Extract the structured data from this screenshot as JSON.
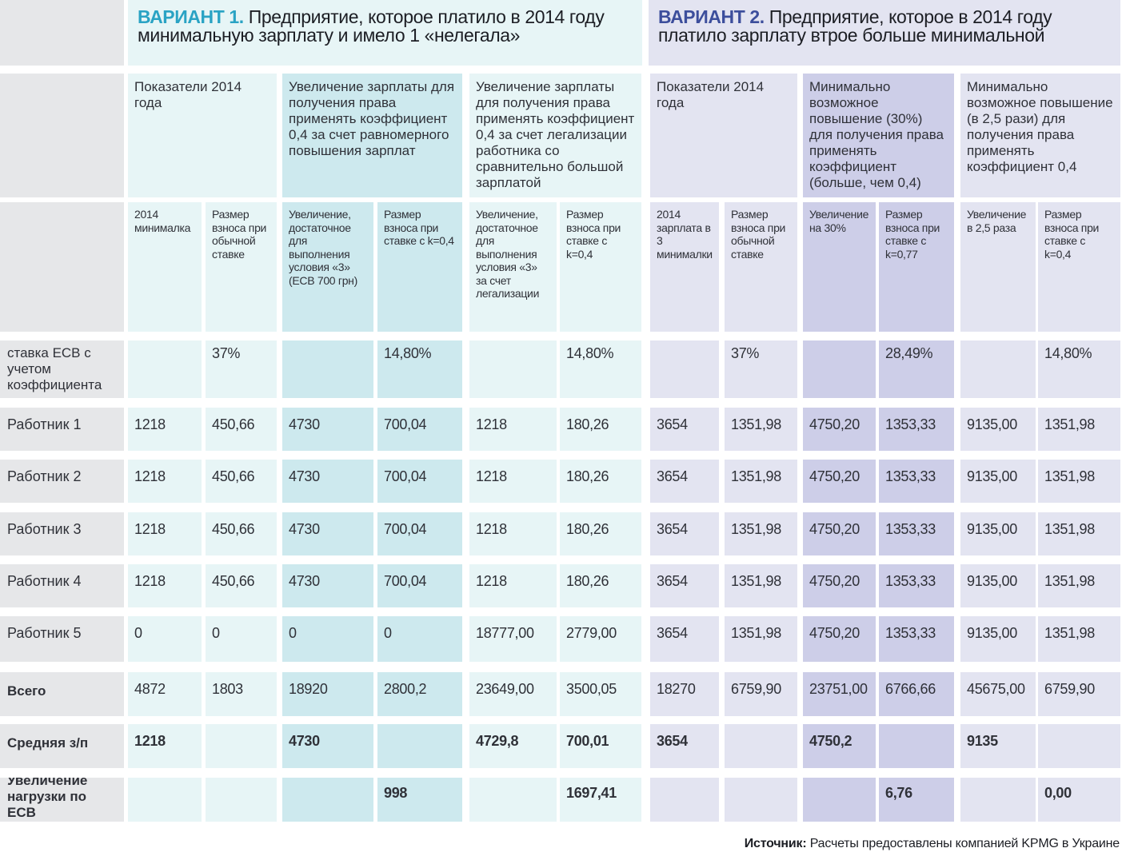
{
  "title1": {
    "lead": "ВАРИАНТ 1.",
    "text": " Предприятие, которое платило в 2014 году минимальную зарплату и имело 1 «нелегала»"
  },
  "title2": {
    "lead": "ВАРИАНТ 2.",
    "text": " Предприятие, которое  в 2014 году платило  зарплату втрое больше минимальной"
  },
  "groups": [
    "Показатели 2014 года",
    "Увеличение зарплаты для получения права применять коэффициент 0,4 за счет равномерного повышения зарплат",
    "Увеличение зарплаты для получения права применять коэффициент 0,4 за счет легализации работника со сравнительно большой зарплатой",
    "Показатели 2014 года",
    "Минимально возможное повышение (30%) для получения права применять коэффициент (больше, чем 0,4)",
    "Минимально возможное повышение (в 2,5 рази) для получения права применять коэффициент  0,4"
  ],
  "subheads": [
    "2014 минималка",
    "Размер взноса при обычной ставке",
    "Увеличение, достаточное для выполнения условия «3» (ЕСВ 700 грн)",
    "Размер взноса при ставке с k=0,4",
    "Увеличение, достаточное для выполнения условия «3» за счет легализации",
    "Размер взноса при ставке с k=0,4",
    "2014 зарплата в 3 минималки",
    "Размер взноса при обычной ставке",
    "Увеличение на 30%",
    "Размер взноса при ставке с k=0,77",
    "Увеличение в 2,5 раза",
    "Размер взноса при ставке с k=0,4"
  ],
  "rows": [
    {
      "label": "ставка ЕСВ с учетом коэффициента",
      "cells": [
        "",
        "37%",
        "",
        "14,80%",
        "",
        "14,80%",
        "",
        "37%",
        "",
        "28,49%",
        "",
        "14,80%"
      ]
    },
    {
      "label": "Работник 1",
      "cells": [
        "1218",
        "450,66",
        "4730",
        "700,04",
        "1218",
        "180,26",
        "3654",
        "1351,98",
        "4750,20",
        "1353,33",
        "9135,00",
        "1351,98"
      ]
    },
    {
      "label": "Работник 2",
      "cells": [
        "1218",
        "450,66",
        "4730",
        "700,04",
        "1218",
        "180,26",
        "3654",
        "1351,98",
        "4750,20",
        "1353,33",
        "9135,00",
        "1351,98"
      ]
    },
    {
      "label": "Работник 3",
      "cells": [
        "1218",
        "450,66",
        "4730",
        "700,04",
        "1218",
        "180,26",
        "3654",
        "1351,98",
        "4750,20",
        "1353,33",
        "9135,00",
        "1351,98"
      ]
    },
    {
      "label": "Работник 4",
      "cells": [
        "1218",
        "450,66",
        "4730",
        "700,04",
        " 1218",
        "180,26",
        "3654",
        "1351,98",
        "4750,20",
        "1353,33",
        "9135,00",
        "1351,98"
      ]
    },
    {
      "label": "Работник 5",
      "cells": [
        "0",
        "0",
        "0",
        "0",
        "18777,00",
        "2779,00",
        "3654",
        "1351,98",
        "4750,20",
        "1353,33",
        "9135,00",
        "1351,98"
      ]
    },
    {
      "label": "Всего",
      "cells": [
        "4872",
        "1803",
        "18920",
        "2800,2",
        "23649,00",
        "3500,05",
        "18270",
        "6759,90",
        "23751,00",
        "6766,66",
        "45675,00",
        "6759,90"
      ]
    },
    {
      "label": "Средняя з/п",
      "cells": [
        "1218",
        "",
        "4730",
        "",
        "4729,8",
        "700,01",
        "3654",
        "",
        "4750,2",
        "",
        "9135",
        ""
      ]
    },
    {
      "label": "Увеличение нагрузки по ЕСВ",
      "cells": [
        "",
        "",
        "",
        "998",
        "",
        "1697,41",
        "",
        "",
        "",
        "6,76",
        "",
        "0,00"
      ]
    }
  ],
  "source": {
    "lead": "Источник:",
    "text": " Расчеты предоставлены компанией KPMG в Украине"
  }
}
